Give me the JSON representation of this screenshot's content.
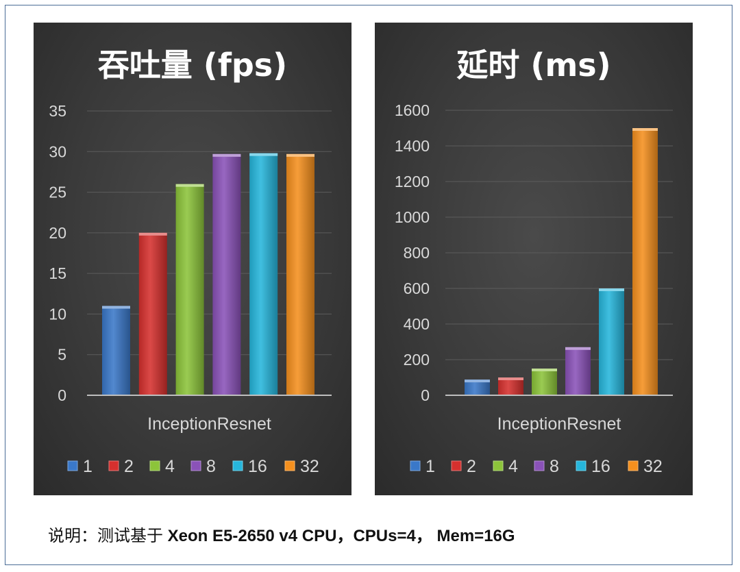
{
  "chart_data": [
    {
      "type": "bar",
      "title": "吞吐量 (fps)",
      "categories": [
        "InceptionResnet"
      ],
      "xlabel": "",
      "ylabel": "",
      "ylim": [
        0,
        35
      ],
      "yticks": [
        "0",
        "5",
        "10",
        "15",
        "20",
        "25",
        "30",
        "35"
      ],
      "grid": true,
      "legend_position": "bottom",
      "series": [
        {
          "name": "1",
          "values": [
            11
          ]
        },
        {
          "name": "2",
          "values": [
            20
          ]
        },
        {
          "name": "4",
          "values": [
            26
          ]
        },
        {
          "name": "8",
          "values": [
            29.7
          ]
        },
        {
          "name": "16",
          "values": [
            29.8
          ]
        },
        {
          "name": "32",
          "values": [
            29.7
          ]
        }
      ]
    },
    {
      "type": "bar",
      "title": "延时 (ms)",
      "categories": [
        "InceptionResnet"
      ],
      "xlabel": "",
      "ylabel": "",
      "ylim": [
        0,
        1600
      ],
      "yticks": [
        "0",
        "200",
        "400",
        "600",
        "800",
        "1000",
        "1200",
        "1400",
        "1600"
      ],
      "grid": true,
      "legend_position": "bottom",
      "series": [
        {
          "name": "1",
          "values": [
            88
          ]
        },
        {
          "name": "2",
          "values": [
            100
          ]
        },
        {
          "name": "4",
          "values": [
            150
          ]
        },
        {
          "name": "8",
          "values": [
            270
          ]
        },
        {
          "name": "16",
          "values": [
            600
          ]
        },
        {
          "name": "32",
          "values": [
            1500
          ]
        }
      ]
    }
  ],
  "colors": {
    "1": "#3a78c9",
    "2": "#d6302e",
    "4": "#8cc43a",
    "8": "#8a52b8",
    "16": "#26b6dc",
    "32": "#f5901e"
  },
  "footnote": {
    "prefix": "说明：测试基于",
    "spec": " Xeon E5-2650 v4 CPU，CPUs=4， Mem=16G"
  }
}
